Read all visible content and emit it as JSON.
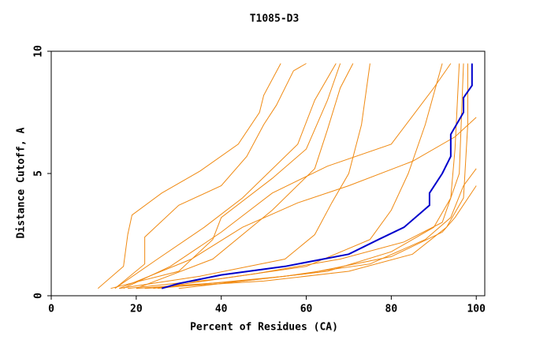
{
  "chart_data": {
    "type": "line",
    "title": "T1085-D3",
    "x_label": "Percent of Residues (CA)",
    "y_label": "Distance Cutoff, A",
    "xlim": [
      0,
      102
    ],
    "xticks": [
      0,
      20,
      40,
      60,
      80,
      100
    ],
    "ylim": [
      0,
      10
    ],
    "yticks": [
      0,
      5,
      10
    ],
    "series": [
      {
        "color": "#f08a12",
        "x": [
          11,
          17,
          18,
          19,
          26,
          35,
          44,
          49,
          50,
          54
        ],
        "values": [
          0.3,
          1.2,
          2.5,
          3.3,
          4.2,
          5.1,
          6.2,
          7.5,
          8.2,
          9.5
        ]
      },
      {
        "color": "#f08a12",
        "x": [
          15,
          22,
          22,
          30,
          40,
          46,
          50,
          53,
          57,
          60
        ],
        "values": [
          0.3,
          1.3,
          2.4,
          3.7,
          4.5,
          5.7,
          7,
          7.8,
          9.2,
          9.5
        ]
      },
      {
        "color": "#f08a12",
        "x": [
          14,
          30,
          38,
          40,
          52,
          60,
          65,
          68
        ],
        "values": [
          0.3,
          1,
          2.3,
          3.2,
          4.8,
          6,
          8,
          9.5
        ]
      },
      {
        "color": "#f08a12",
        "x": [
          16,
          35,
          55,
          62,
          66,
          70,
          73,
          75
        ],
        "values": [
          0.3,
          0.8,
          1.5,
          2.5,
          3.8,
          5,
          7,
          9.5
        ]
      },
      {
        "color": "#f08a12",
        "x": [
          18,
          40,
          60,
          75,
          80,
          84,
          88,
          92
        ],
        "values": [
          0.3,
          0.7,
          1.2,
          2.3,
          3.5,
          5,
          7,
          9.5
        ]
      },
      {
        "color": "#f08a12",
        "x": [
          20,
          45,
          65,
          80,
          90,
          94,
          95,
          96
        ],
        "values": [
          0.3,
          0.6,
          1,
          1.8,
          2.8,
          4,
          6,
          9.5
        ]
      },
      {
        "color": "#f08a12",
        "x": [
          22,
          50,
          70,
          85,
          93,
          97,
          98,
          98
        ],
        "values": [
          0.3,
          0.6,
          1,
          1.7,
          2.8,
          4,
          7,
          9.5
        ]
      },
      {
        "color": "#f08a12",
        "x": [
          15,
          25,
          36,
          45,
          58,
          62,
          67
        ],
        "values": [
          0.3,
          1.5,
          2.8,
          4,
          6.2,
          8,
          9.5
        ]
      },
      {
        "color": "#f08a12",
        "x": [
          17,
          28,
          40,
          52,
          65,
          80,
          90,
          94
        ],
        "values": [
          0.3,
          1.2,
          2.6,
          4.2,
          5.3,
          6.2,
          8.5,
          9.5
        ]
      },
      {
        "color": "#f08a12",
        "x": [
          25,
          55,
          75,
          88,
          94,
          97,
          100
        ],
        "values": [
          0.3,
          0.8,
          1.3,
          2.3,
          3.2,
          4.5,
          5.2
        ]
      },
      {
        "color": "#f08a12",
        "x": [
          30,
          60,
          80,
          92,
          95,
          100
        ],
        "values": [
          0.3,
          0.9,
          1.6,
          2.6,
          3.2,
          4.5
        ]
      },
      {
        "color": "#f08a12",
        "x": [
          16,
          33,
          45,
          58,
          70,
          85,
          95,
          100
        ],
        "values": [
          0.3,
          1.5,
          2.8,
          3.8,
          4.5,
          5.5,
          6.5,
          7.3
        ]
      },
      {
        "color": "#f08a12",
        "x": [
          20,
          38,
          52,
          62,
          65,
          68,
          71
        ],
        "values": [
          0.3,
          1.5,
          3.5,
          5.2,
          6.8,
          8.5,
          9.5
        ]
      },
      {
        "color": "#f08a12",
        "x": [
          24,
          48,
          68,
          83,
          92,
          96,
          97
        ],
        "values": [
          0.3,
          0.9,
          1.5,
          2.2,
          3,
          5,
          9.5
        ]
      },
      {
        "color": "#0000cc",
        "x": [
          26,
          30,
          40,
          55,
          70,
          77,
          83,
          87,
          89,
          89,
          92,
          94,
          94,
          97,
          97,
          99,
          99
        ],
        "values": [
          0.3,
          0.5,
          0.85,
          1.2,
          1.7,
          2.3,
          2.8,
          3.4,
          3.7,
          4.2,
          5,
          5.7,
          6.6,
          7.5,
          8.1,
          8.6,
          9.5
        ]
      }
    ]
  }
}
